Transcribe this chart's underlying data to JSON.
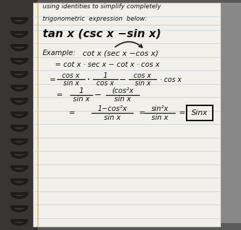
{
  "bg_color": "#6a6a6a",
  "paper_color": "#f0eeea",
  "spiral_color": "#1a1a1a",
  "line_color": "#b0bcc8",
  "text_color": "#111111",
  "header_line1": "using identities to simplify completely",
  "header_line2": "trigonometric  expression  below:",
  "problem": "tan x (csc x  −sin x)",
  "example_label": "Example:",
  "example_expr": "cot x (sec x −cos x)",
  "step1": "= cot x · sec x − cot x · cos x",
  "step2_num1": "cos x",
  "step2_den1": "sin x",
  "step2_num2": "1",
  "step2_den2": "cos x",
  "step2_num3": "cos x",
  "step2_den3": "sin x",
  "step2_end": "· cos x",
  "step3_num1": "1",
  "step3_den1": "sin x",
  "step3_num2": "(cos²x",
  "step3_den2": "sin x",
  "step4_num": "1−cos²x",
  "step4_den": "sin x",
  "step4_num2": "sin²x",
  "step4_den2": "sin x",
  "step4_ans": "Sinx",
  "figsize": [
    3.5,
    3.34
  ],
  "dpi": 100
}
